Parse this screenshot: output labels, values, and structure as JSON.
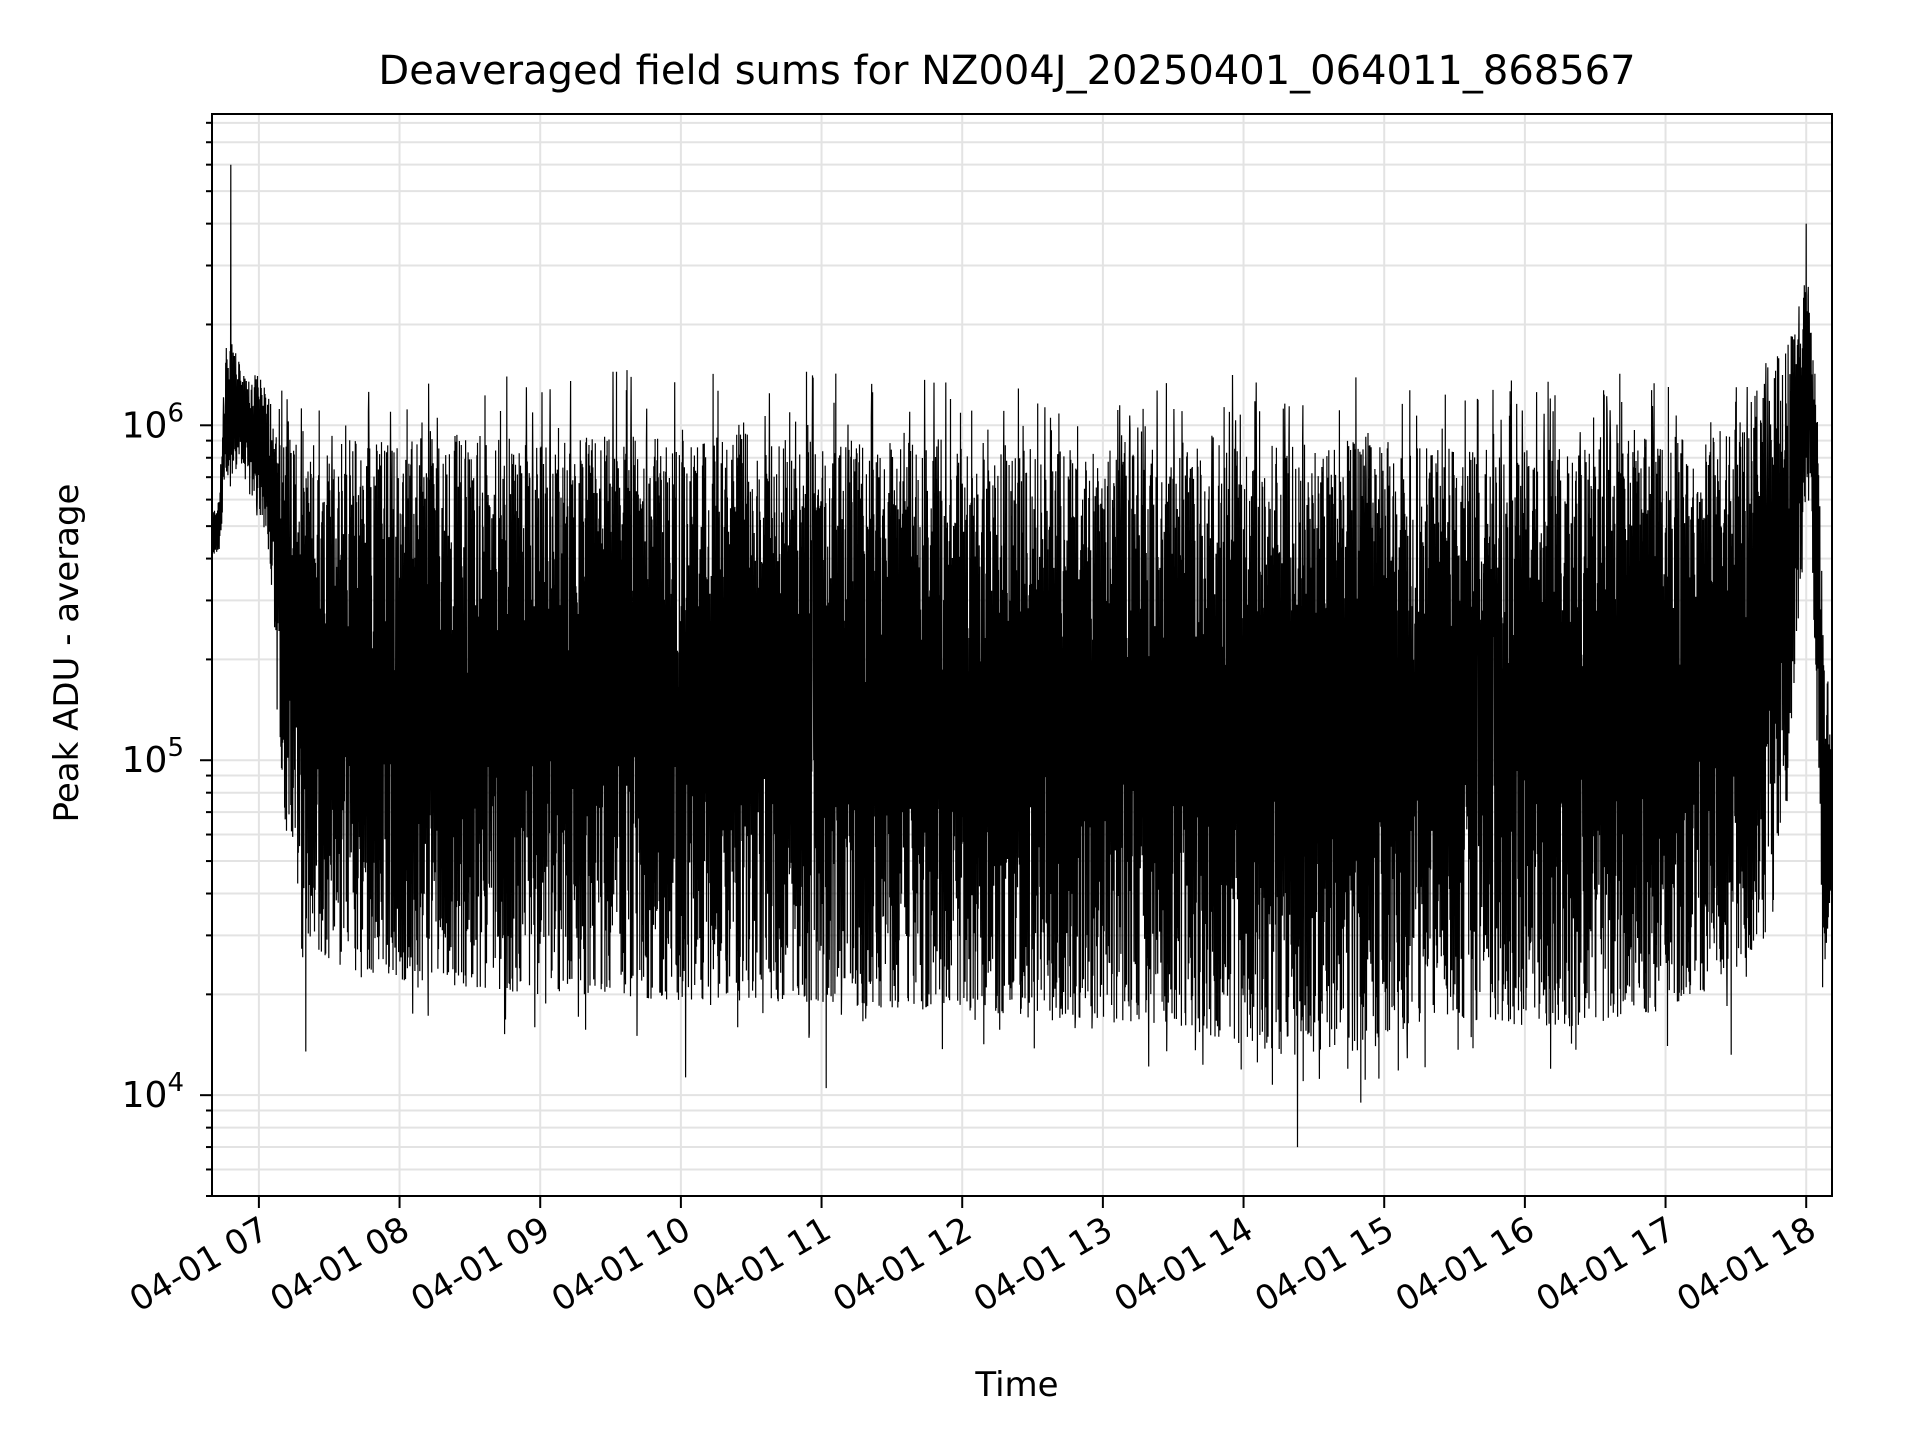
{
  "chart_data": {
    "type": "line",
    "title": "Deaveraged field sums for NZ004J_20250401_064011_868567",
    "xlabel": "Time",
    "ylabel": "Peak ADU - average",
    "yscale": "log",
    "grid": true,
    "xlim": [
      "04-01 06:40",
      "04-01 18:11"
    ],
    "ylim": [
      5000,
      8500000
    ],
    "x_ticks": [
      "04-01 07",
      "04-01 08",
      "04-01 09",
      "04-01 10",
      "04-01 11",
      "04-01 12",
      "04-01 13",
      "04-01 14",
      "04-01 15",
      "04-01 16",
      "04-01 17",
      "04-01 18"
    ],
    "y_ticks": [
      {
        "base": "10",
        "exp": "4",
        "value": 10000
      },
      {
        "base": "10",
        "exp": "5",
        "value": 100000
      },
      {
        "base": "10",
        "exp": "6",
        "value": 1000000
      }
    ],
    "line_color": "#000000",
    "series": [
      {
        "name": "",
        "comment_free_profile": true,
        "time": [
          "06:40",
          "06:43",
          "06:46",
          "06:49",
          "06:52",
          "06:54",
          "06:56",
          "06:58",
          "07:00",
          "07:03",
          "07:06",
          "07:08",
          "07:10",
          "07:13",
          "07:16",
          "07:20",
          "07:30",
          "07:45",
          "08:00",
          "08:30",
          "09:00",
          "09:30",
          "10:00",
          "10:30",
          "11:00",
          "11:30",
          "12:00",
          "12:30",
          "13:00",
          "13:30",
          "14:00",
          "14:20",
          "14:40",
          "15:00",
          "15:30",
          "16:00",
          "16:20",
          "16:40",
          "17:00",
          "17:15",
          "17:30",
          "17:40",
          "17:45",
          "17:50",
          "17:55",
          "17:58",
          "18:00",
          "18:02",
          "18:04",
          "18:06",
          "18:08",
          "18:11"
        ],
        "upper": [
          550000,
          600000,
          1700000,
          1800000,
          1500000,
          1400000,
          1300000,
          1500000,
          1400000,
          1300000,
          1200000,
          1200000,
          1150000,
          1000000,
          950000,
          900000,
          900000,
          950000,
          900000,
          950000,
          900000,
          950000,
          900000,
          950000,
          900000,
          900000,
          850000,
          850000,
          850000,
          850000,
          900000,
          900000,
          900000,
          900000,
          850000,
          850000,
          850000,
          900000,
          950000,
          1000000,
          1100000,
          1300000,
          1500000,
          1700000,
          1900000,
          2500000,
          3000000,
          2000000,
          1500000,
          600000,
          200000,
          150000
        ],
        "lower": [
          400000,
          420000,
          700000,
          700000,
          800000,
          700000,
          600000,
          600000,
          550000,
          500000,
          300000,
          120000,
          80000,
          50000,
          40000,
          30000,
          25000,
          22000,
          22000,
          21000,
          20000,
          20000,
          19000,
          19000,
          19000,
          18000,
          18000,
          17000,
          17000,
          16000,
          14000,
          13000,
          14000,
          15000,
          17000,
          16000,
          16000,
          17000,
          18000,
          20000,
          24000,
          28000,
          32000,
          45000,
          180000,
          400000,
          600000,
          700000,
          120000,
          50000,
          25000,
          40000
        ]
      }
    ],
    "peaks": [
      {
        "time": "06:48",
        "value": 6000000
      },
      {
        "time": "18:00",
        "value": 4000000
      }
    ],
    "dips": [
      {
        "time": "07:20",
        "value": 13500
      },
      {
        "time": "10:02",
        "value": 11300
      },
      {
        "time": "11:02",
        "value": 10500
      },
      {
        "time": "14:23",
        "value": 7000
      },
      {
        "time": "14:50",
        "value": 9500
      },
      {
        "time": "17:28",
        "value": 13200
      },
      {
        "time": "18:07",
        "value": 21000
      }
    ]
  }
}
